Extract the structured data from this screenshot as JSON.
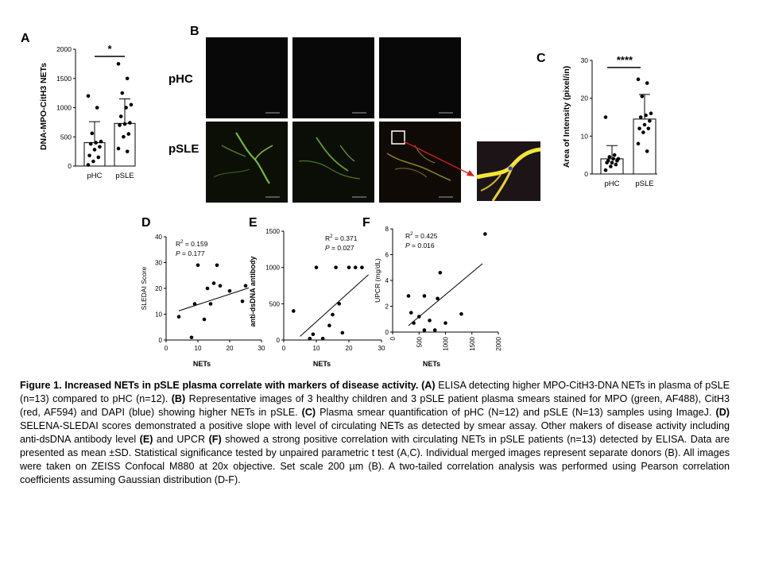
{
  "panels": {
    "A": {
      "label": "A",
      "chart_data": {
        "type": "bar",
        "categories": [
          "pHC",
          "pSLE"
        ],
        "values": [
          400,
          730
        ],
        "error_sd": [
          360,
          420
        ],
        "points": [
          [
            1200,
            1000,
            560,
            420,
            400,
            380,
            330,
            280,
            180,
            150,
            80,
            20
          ],
          [
            1750,
            1500,
            1250,
            1050,
            1000,
            850,
            740,
            720,
            700,
            550,
            500,
            300,
            250
          ]
        ],
        "ylabel": "DNA-MPO-CitH3 NETs",
        "ylim": [
          0,
          2000
        ],
        "yticks": [
          "0",
          "500",
          "1000",
          "1500",
          "2000"
        ],
        "significance": "*"
      }
    },
    "B": {
      "label": "B",
      "rows": [
        "pHC",
        "pSLE"
      ],
      "colors": {
        "green": "#7ec83c",
        "red": "#c8282a",
        "blue": "#3040c0",
        "yellow": "#f4e637"
      }
    },
    "C": {
      "label": "C",
      "chart_data": {
        "type": "bar",
        "categories": [
          "pHC",
          "pSLE"
        ],
        "values": [
          4,
          14.5
        ],
        "error_sd": [
          3.5,
          6.5
        ],
        "points": [
          [
            15,
            5,
            4.5,
            4,
            4,
            3.5,
            3.5,
            3,
            3,
            2.5,
            2,
            1
          ],
          [
            25,
            24,
            20.5,
            16,
            15.5,
            15,
            14,
            13,
            12,
            12,
            11,
            8,
            6
          ]
        ],
        "ylabel": "Area of Intensity (pixel/in)",
        "ylim": [
          0,
          30
        ],
        "yticks": [
          "0",
          "10",
          "20",
          "30"
        ],
        "significance": "****"
      }
    },
    "D": {
      "label": "D",
      "chart_data": {
        "type": "scatter",
        "points": [
          [
            4,
            9
          ],
          [
            8,
            1
          ],
          [
            9,
            14
          ],
          [
            10,
            29
          ],
          [
            12,
            8
          ],
          [
            13,
            20
          ],
          [
            14,
            14
          ],
          [
            15,
            22
          ],
          [
            16,
            29
          ],
          [
            17,
            21
          ],
          [
            20,
            19
          ],
          [
            24,
            15
          ],
          [
            25,
            21
          ]
        ],
        "trend": [
          [
            4,
            11.3
          ],
          [
            26,
            20.2
          ]
        ],
        "xlabel": "NETs",
        "ylabel": "SLEDAI Score",
        "xlim": [
          0,
          30
        ],
        "ylim": [
          0,
          40
        ],
        "xticks": [
          "0",
          "10",
          "20",
          "30"
        ],
        "yticks": [
          "0",
          "10",
          "20",
          "30",
          "40"
        ],
        "r2_prefix": "R",
        "r2_sup": "2",
        "r2_value": " = 0.159",
        "p_label": "P",
        "p_value": " = 0.177"
      }
    },
    "E": {
      "label": "E",
      "chart_data": {
        "type": "scatter",
        "points": [
          [
            3,
            400
          ],
          [
            8,
            20
          ],
          [
            9,
            80
          ],
          [
            10,
            1000
          ],
          [
            12,
            20
          ],
          [
            14,
            200
          ],
          [
            15,
            350
          ],
          [
            16,
            1000
          ],
          [
            17,
            500
          ],
          [
            18,
            100
          ],
          [
            20,
            1000
          ],
          [
            22,
            1000
          ],
          [
            24,
            1000
          ]
        ],
        "trend": [
          [
            5,
            50
          ],
          [
            26,
            900
          ]
        ],
        "xlabel": "NETs",
        "ylabel": "anti-dsDNA antibody",
        "xlim": [
          0,
          30
        ],
        "ylim": [
          0,
          1500
        ],
        "xticks": [
          "0",
          "10",
          "20",
          "30"
        ],
        "yticks": [
          "0",
          "500",
          "1000",
          "1500"
        ],
        "r2_prefix": "R",
        "r2_sup": "2",
        "r2_value": " = 0.371",
        "p_label": "P",
        "p_value": " = 0.027"
      }
    },
    "F": {
      "label": "F",
      "chart_data": {
        "type": "scatter",
        "points": [
          [
            300,
            2.8
          ],
          [
            350,
            1.5
          ],
          [
            400,
            0.7
          ],
          [
            500,
            1.2
          ],
          [
            600,
            2.8
          ],
          [
            600,
            0.15
          ],
          [
            700,
            0.9
          ],
          [
            800,
            0.15
          ],
          [
            850,
            2.6
          ],
          [
            900,
            4.6
          ],
          [
            1000,
            0.7
          ],
          [
            1300,
            1.4
          ],
          [
            1750,
            7.6
          ]
        ],
        "trend": [
          [
            300,
            0.5
          ],
          [
            1700,
            5.3
          ]
        ],
        "xlabel": "NETs",
        "ylabel": "UPCR (mg/dL)",
        "xlim": [
          0,
          2000
        ],
        "ylim": [
          0,
          8
        ],
        "xticks": [
          "0",
          "500",
          "1000",
          "1500",
          "2000"
        ],
        "yticks": [
          "0",
          "2",
          "4",
          "6",
          "8"
        ],
        "r2_prefix": "R",
        "r2_sup": "2",
        "r2_value": " = 0.425",
        "p_label": "P",
        "p_value": " = 0.016"
      }
    }
  },
  "caption": {
    "title": "Figure 1. Increased NETs in pSLE plasma correlate with markers of disease activity. ",
    "a_label": "(A)",
    "a_text": " ELISA detecting higher MPO-CitH3-DNA NETs in plasma of pSLE (n=13) compared to pHC (n=12). ",
    "b_label": "(B)",
    "b_text": " Representative images of 3 healthy children and 3 pSLE patient plasma smears stained for MPO (green, AF488), CitH3 (red, AF594) and DAPI (blue) showing higher NETs in pSLE. ",
    "c_label": "(C)",
    "c_text": " Plasma smear quantification of pHC (N=12) and pSLE (N=13) samples using ImageJ. ",
    "d_label": "(D)",
    "d_text": " SELENA-SLEDAI scores demonstrated a positive slope with level of circulating NETs as detected by smear assay. Other makers of disease activity including anti-dsDNA antibody level ",
    "e_label": "(E)",
    "e_text": " and UPCR ",
    "f_label": "(F)",
    "f_text": " showed a strong positive correlation with circulating NETs in pSLE patients (n=13) detected by ELISA. Data are presented as mean ±SD. Statistical significance tested by unpaired parametric t test (A,C). Individual merged images represent separate donors (B). All images were taken on ZEISS Confocal M880 at 20x objective. Set scale 200 µm (B). A two-tailed correlation analysis was performed using Pearson correlation coefficients assuming Gaussian distribution (D-F)."
  }
}
